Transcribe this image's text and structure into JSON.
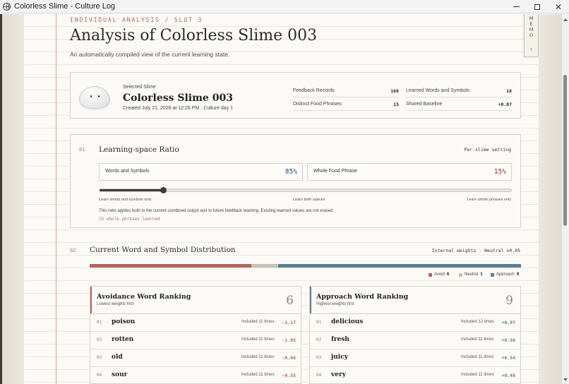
{
  "window": {
    "title": "Colorless Slime - Culture Log",
    "icon": "globe-icon"
  },
  "memo": {
    "label": "MEMO",
    "chevron": "‹"
  },
  "header": {
    "kicker": "INDIVIDUAL ANALYSIS / SLOT 3",
    "title": "Analysis of Colorless Slime 003",
    "subtitle": "An automatically compiled view of the current learning state."
  },
  "profile": {
    "selected_label": "Selected Slime",
    "name": "Colorless Slime 003",
    "meta": "Created July 21, 2026 at 12:26 PM · Culture day 1",
    "stats": [
      {
        "label": "Feedback Records",
        "value": "166"
      },
      {
        "label": "Learned Words and Symbols",
        "value": "16"
      },
      {
        "label": "Distinct Food Phrases",
        "value": "15"
      },
      {
        "label": "Shared Baseline",
        "value": "+0.07"
      }
    ]
  },
  "learning_space": {
    "number": "01",
    "title": "Learning-space Ratio",
    "setting": "Per-slime setting",
    "words_label": "Words and Symbols",
    "words_value": "85%",
    "phrase_label": "Whole Food Phrase",
    "phrase_value": "15%",
    "slider_fraction": 0.155,
    "slider_left_label": "Learn words and symbols only",
    "slider_mid_label": "Learn both spaces",
    "slider_right_label": "Learn whole phrases only",
    "note": "This ratio applies both to the current combined output and to future feedback learning. Existing learned values are not erased.",
    "learned": "15 whole phrases learned"
  },
  "distribution": {
    "number": "02",
    "title": "Current Word and Symbol Distribution",
    "note": "Internal weights - Neutral ±0.05",
    "counts": {
      "avoid": 6,
      "neutral": 1,
      "approach": 9
    },
    "legend": {
      "avoid_label": "Avoid",
      "avoid_count": "6",
      "neutral_label": "Neutral",
      "neutral_count": "1",
      "approach_label": "Approach",
      "approach_count": "9"
    },
    "colors": {
      "avoid": "#b5645f",
      "neutral": "#c8c2b5",
      "approach": "#5a7f91"
    }
  },
  "avoidance": {
    "title": "Avoidance Word Ranking",
    "subtitle": "Lowest weights first",
    "count": "6",
    "rows": [
      {
        "n": "01",
        "word": "poison",
        "included": "Included 11 times",
        "value": "-1.17"
      },
      {
        "n": "02",
        "word": "rotten",
        "included": "Included 11 times",
        "value": "-1.05"
      },
      {
        "n": "03",
        "word": "old",
        "included": "Included 11 times",
        "value": "-0.86"
      },
      {
        "n": "04",
        "word": "sour",
        "included": "Included 11 times",
        "value": "-0.55"
      }
    ]
  },
  "approach": {
    "title": "Approach Word Ranking",
    "subtitle": "Highest weights first",
    "count": "9",
    "rows": [
      {
        "n": "01",
        "word": "delicious",
        "included": "Included 12 times",
        "value": "+0.97"
      },
      {
        "n": "02",
        "word": "fresh",
        "included": "Included 11 times",
        "value": "+0.56"
      },
      {
        "n": "03",
        "word": "juicy",
        "included": "Included 11 times",
        "value": "+0.54"
      },
      {
        "n": "04",
        "word": "very",
        "included": "Included 11 times",
        "value": "+0.48"
      }
    ]
  }
}
